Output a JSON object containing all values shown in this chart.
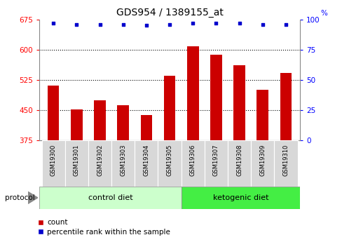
{
  "title": "GDS954 / 1389155_at",
  "samples": [
    "GSM19300",
    "GSM19301",
    "GSM19302",
    "GSM19303",
    "GSM19304",
    "GSM19305",
    "GSM19306",
    "GSM19307",
    "GSM19308",
    "GSM19309",
    "GSM19310"
  ],
  "counts": [
    510,
    452,
    475,
    462,
    438,
    535,
    608,
    588,
    562,
    500,
    542
  ],
  "percentile_ranks": [
    97,
    96,
    96,
    96,
    95,
    96,
    97,
    97,
    97,
    96,
    96
  ],
  "ylim_left": [
    375,
    675
  ],
  "ylim_right": [
    0,
    100
  ],
  "yticks_left": [
    375,
    450,
    525,
    600,
    675
  ],
  "yticks_right": [
    0,
    25,
    50,
    75,
    100
  ],
  "bar_color": "#cc0000",
  "dot_color": "#0000cc",
  "grid_color": "#000000",
  "bar_width": 0.5,
  "n_control": 6,
  "n_ketogenic": 5,
  "control_label": "control diet",
  "ketogenic_label": "ketogenic diet",
  "protocol_label": "protocol",
  "legend_count": "count",
  "legend_percentile": "percentile rank within the sample",
  "background_plot": "#ffffff",
  "background_control": "#ccffcc",
  "background_ketogenic": "#44ee44",
  "title_fontsize": 10,
  "tick_fontsize": 7.5,
  "label_fontsize": 8,
  "bar_bottom": 375
}
